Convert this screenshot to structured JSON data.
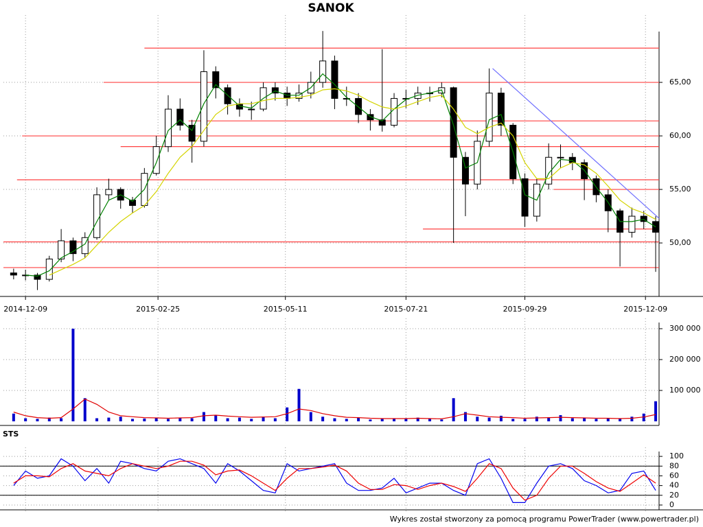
{
  "chart_data": {
    "type": "candlestick",
    "title": "SANOK",
    "x": [
      "2014-12-02",
      "2014-12-09",
      "2014-12-16",
      "2014-12-23",
      "2014-12-30",
      "2015-01-06",
      "2015-01-13",
      "2015-01-20",
      "2015-01-27",
      "2015-02-03",
      "2015-02-10",
      "2015-02-17",
      "2015-02-24",
      "2015-03-03",
      "2015-03-10",
      "2015-03-17",
      "2015-03-24",
      "2015-03-31",
      "2015-04-07",
      "2015-04-14",
      "2015-04-21",
      "2015-04-28",
      "2015-05-05",
      "2015-05-12",
      "2015-05-19",
      "2015-05-26",
      "2015-06-02",
      "2015-06-09",
      "2015-06-16",
      "2015-06-23",
      "2015-06-30",
      "2015-07-07",
      "2015-07-14",
      "2015-07-21",
      "2015-07-28",
      "2015-08-04",
      "2015-08-11",
      "2015-08-18",
      "2015-08-25",
      "2015-09-01",
      "2015-09-08",
      "2015-09-15",
      "2015-09-22",
      "2015-09-29",
      "2015-10-06",
      "2015-10-13",
      "2015-10-20",
      "2015-10-27",
      "2015-11-03",
      "2015-11-10",
      "2015-11-17",
      "2015-11-24",
      "2015-12-01",
      "2015-12-08",
      "2015-12-15"
    ],
    "open": [
      47.2,
      47.0,
      47.0,
      46.6,
      48.5,
      50.2,
      49.0,
      50.5,
      54.5,
      55.0,
      54.0,
      53.5,
      56.5,
      59.0,
      62.5,
      61.0,
      59.5,
      66.0,
      64.5,
      63.0,
      62.5,
      62.5,
      64.5,
      64.0,
      63.5,
      64.0,
      65.0,
      67.0,
      63.5,
      63.5,
      62.0,
      61.5,
      61.0,
      63.5,
      63.5,
      64.0,
      64.0,
      64.5,
      58.0,
      55.5,
      59.5,
      64.0,
      61.0,
      56.0,
      52.5,
      55.5,
      58.0,
      58.0,
      57.5,
      56.0,
      54.5,
      53.0,
      51.0,
      52.5,
      52.0
    ],
    "high": [
      47.6,
      47.5,
      47.2,
      48.8,
      51.3,
      50.5,
      51.0,
      55.2,
      56.0,
      55.2,
      54.3,
      57.0,
      60.0,
      63.8,
      63.5,
      61.5,
      68.0,
      66.5,
      64.8,
      63.5,
      63.2,
      65.0,
      65.0,
      64.6,
      64.8,
      66.0,
      69.8,
      67.5,
      64.6,
      64.0,
      62.5,
      68.1,
      64.0,
      64.3,
      64.6,
      64.6,
      65.0,
      64.6,
      58.5,
      60.5,
      66.3,
      64.5,
      61.2,
      56.5,
      56.0,
      59.3,
      59.2,
      58.4,
      57.8,
      56.3,
      55.0,
      53.2,
      53.3,
      53.0,
      52.5
    ],
    "low": [
      46.6,
      46.5,
      45.6,
      46.4,
      48.2,
      48.3,
      48.6,
      50.3,
      54.0,
      53.2,
      52.8,
      53.3,
      56.3,
      58.5,
      60.5,
      57.5,
      59.0,
      63.5,
      62.0,
      61.8,
      61.5,
      62.3,
      63.3,
      62.8,
      63.2,
      63.5,
      64.5,
      62.5,
      62.8,
      61.2,
      60.5,
      60.4,
      60.8,
      62.6,
      62.9,
      63.2,
      63.6,
      50.0,
      52.5,
      55.0,
      59.0,
      60.0,
      55.5,
      51.5,
      52.0,
      55.0,
      57.0,
      56.8,
      54.0,
      53.8,
      51.0,
      47.8,
      50.5,
      51.3,
      47.3
    ],
    "close": [
      47.0,
      47.0,
      46.6,
      48.5,
      50.2,
      49.0,
      50.5,
      54.5,
      55.0,
      54.0,
      53.5,
      56.5,
      59.0,
      62.5,
      61.0,
      59.5,
      66.0,
      64.5,
      63.0,
      62.5,
      62.5,
      64.5,
      64.0,
      63.5,
      64.0,
      65.0,
      67.0,
      63.5,
      63.5,
      62.0,
      61.5,
      61.0,
      63.5,
      63.5,
      64.0,
      64.0,
      64.5,
      58.0,
      55.5,
      59.5,
      64.0,
      61.0,
      56.0,
      52.5,
      55.5,
      58.0,
      58.0,
      57.5,
      56.0,
      54.5,
      53.0,
      51.0,
      52.5,
      52.0,
      51.0
    ],
    "up_color": "#ffffff",
    "down_color": "#000000",
    "series": [
      {
        "color": "#008000",
        "values": [
          null,
          47.0,
          46.9,
          47.4,
          48.6,
          49.2,
          49.9,
          52.0,
          54.0,
          54.5,
          53.9,
          55.0,
          57.5,
          60.5,
          61.5,
          60.5,
          63.0,
          64.8,
          63.8,
          62.8,
          62.6,
          63.5,
          64.2,
          63.8,
          63.8,
          64.5,
          65.8,
          64.8,
          63.6,
          62.7,
          61.8,
          61.4,
          62.5,
          63.4,
          63.8,
          64.0,
          64.3,
          61.0,
          57.0,
          57.5,
          61.5,
          62.0,
          58.5,
          54.5,
          54.0,
          56.5,
          57.8,
          57.7,
          56.8,
          55.2,
          53.8,
          52.0,
          52.0,
          52.2,
          51.5
        ]
      },
      {
        "color": "#d4d400",
        "values": [
          null,
          null,
          null,
          47.0,
          47.5,
          48.0,
          48.6,
          49.8,
          51.0,
          52.0,
          52.8,
          53.5,
          54.8,
          56.5,
          58.0,
          59.0,
          60.5,
          62.0,
          62.8,
          63.0,
          63.0,
          63.3,
          63.5,
          63.5,
          63.6,
          63.8,
          64.3,
          64.4,
          64.2,
          63.8,
          63.2,
          62.7,
          62.5,
          62.8,
          63.2,
          63.6,
          63.8,
          62.5,
          60.8,
          60.2,
          60.8,
          61.2,
          60.0,
          57.5,
          56.0,
          56.0,
          57.0,
          57.5,
          57.3,
          56.5,
          55.3,
          54.0,
          53.2,
          52.8,
          52.2
        ]
      }
    ],
    "levels": {
      "color": "#ff4040",
      "lines": [
        {
          "value": 68.2,
          "start": "2015-02-17"
        },
        {
          "value": 65.0,
          "start": "2015-01-24"
        },
        {
          "value": 61.4,
          "start": "2015-03-15"
        },
        {
          "value": 60.0,
          "start": "2014-12-07"
        },
        {
          "value": 59.0,
          "start": "2015-02-03"
        },
        {
          "value": 55.9,
          "start": "2014-12-04"
        },
        {
          "value": 55.0,
          "start": "2015-10-16"
        },
        {
          "value": 51.3,
          "start": "2015-07-31"
        },
        {
          "value": 50.1,
          "start": "2014-11-26"
        },
        {
          "value": 47.7,
          "start": "2014-11-26"
        }
      ]
    },
    "trendline": {
      "x": [
        "2015-09-10",
        "2015-12-17"
      ],
      "y": [
        66.3,
        52.3
      ],
      "color": "#7070ff"
    },
    "xlim": [
      "2014-11-26",
      "2015-12-17"
    ],
    "xticks": [
      "2014-12-09",
      "2015-02-25",
      "2015-05-11",
      "2015-07-21",
      "2015-09-29",
      "2015-12-09"
    ],
    "ylim": [
      45.26,
      70.9
    ],
    "yticks": [
      {
        "value": 50,
        "label": "50,00"
      },
      {
        "value": 55,
        "label": "55,00"
      },
      {
        "value": 60,
        "label": "60,00"
      },
      {
        "value": 65,
        "label": "65,00"
      }
    ],
    "grid": true,
    "volume": {
      "type": "bar",
      "color": "#0000cc",
      "values": [
        25000,
        10000,
        8000,
        12000,
        10000,
        300000,
        75000,
        10000,
        12000,
        15000,
        8000,
        9000,
        10000,
        8000,
        12000,
        10000,
        30000,
        20000,
        10000,
        12000,
        8000,
        15000,
        10000,
        45000,
        105000,
        30000,
        15000,
        10000,
        8000,
        12000,
        6000,
        8000,
        10000,
        9000,
        12000,
        8000,
        6000,
        75000,
        30000,
        15000,
        12000,
        18000,
        8000,
        8000,
        15000,
        12000,
        20000,
        10000,
        12000,
        8000,
        10000,
        8000,
        15000,
        25000,
        65000
      ],
      "series": [
        {
          "color": "#e00000",
          "values": [
            30000,
            18000,
            12000,
            10000,
            12000,
            40000,
            72000,
            55000,
            30000,
            18000,
            15000,
            12000,
            11000,
            10000,
            11000,
            12000,
            18000,
            20000,
            17000,
            15000,
            13000,
            14000,
            15000,
            25000,
            40000,
            35000,
            25000,
            18000,
            13000,
            12000,
            10000,
            9000,
            9000,
            9000,
            10000,
            9000,
            8000,
            15000,
            25000,
            20000,
            15000,
            13000,
            12000,
            10000,
            11000,
            12000,
            13000,
            12000,
            11000,
            10000,
            10000,
            9000,
            10000,
            14000,
            22000
          ]
        }
      ],
      "ylim": [
        0,
        320000
      ],
      "yticks": [
        {
          "value": 100000,
          "label": "100 000"
        },
        {
          "value": 200000,
          "label": "200 000"
        },
        {
          "value": 300000,
          "label": "300 000"
        }
      ]
    },
    "oscillator": {
      "type": "line",
      "label": "STS",
      "series": [
        {
          "color": "#0000ee",
          "values": [
            40,
            70,
            55,
            60,
            95,
            80,
            50,
            75,
            45,
            90,
            85,
            75,
            70,
            90,
            95,
            85,
            75,
            45,
            85,
            70,
            50,
            30,
            25,
            85,
            70,
            75,
            80,
            85,
            45,
            30,
            30,
            35,
            55,
            25,
            35,
            45,
            45,
            30,
            20,
            85,
            95,
            55,
            5,
            5,
            45,
            80,
            85,
            75,
            50,
            40,
            25,
            30,
            65,
            70,
            30
          ]
        },
        {
          "color": "#ee0000",
          "values": [
            45,
            60,
            60,
            58,
            75,
            85,
            70,
            65,
            60,
            75,
            85,
            80,
            75,
            80,
            90,
            90,
            82,
            62,
            70,
            72,
            60,
            45,
            30,
            55,
            75,
            75,
            78,
            82,
            70,
            45,
            32,
            32,
            42,
            40,
            32,
            40,
            45,
            38,
            28,
            55,
            85,
            75,
            35,
            10,
            20,
            55,
            80,
            80,
            65,
            48,
            35,
            28,
            45,
            62,
            45
          ]
        }
      ],
      "ylim": [
        -8.5,
        110
      ],
      "yticks": [
        0,
        20,
        40,
        60,
        80,
        100
      ],
      "levels": [
        20,
        80
      ]
    }
  },
  "footer": "Wykres został stworzony za pomocą programu PowerTrader (www.powertrader.pl)"
}
